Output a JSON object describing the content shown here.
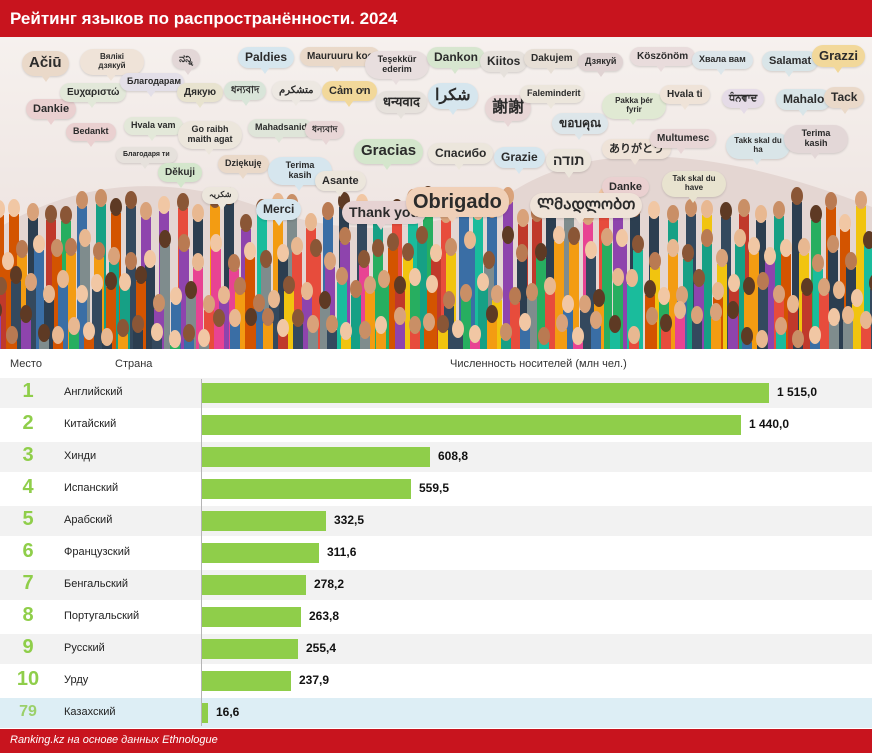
{
  "header": {
    "title": "Рейтинг языков по распространённости. 2024"
  },
  "colors": {
    "accent": "#c8141e",
    "bar": "#8fce4a",
    "highlight_row": "#ddeef5"
  },
  "banner": {
    "bubbles": [
      {
        "text": "Ačiū",
        "color": "#ead9c9"
      },
      {
        "text": "Вялікі дзякуй",
        "color": "#efe3d8"
      },
      {
        "text": "ನನ್ನಿ",
        "color": "#e3d7d7"
      },
      {
        "text": "Paldies",
        "color": "#d6e6ee"
      },
      {
        "text": "Mauruuru koe",
        "color": "#ead9c9"
      },
      {
        "text": "Teşekkür ederim",
        "color": "#e8dede"
      },
      {
        "text": "Dankon",
        "color": "#d7e6cf"
      },
      {
        "text": "Kiitos",
        "color": "#e6e1dc"
      },
      {
        "text": "Dakujem",
        "color": "#e7dfd6"
      },
      {
        "text": "Дзякуй",
        "color": "#e0d3d3"
      },
      {
        "text": "Köszönöm",
        "color": "#e9dcdc"
      },
      {
        "text": "Хвала вам",
        "color": "#dde6ea"
      },
      {
        "text": "Salamat",
        "color": "#d9e5e8"
      },
      {
        "text": "Grazzi",
        "color": "#f2d89a"
      },
      {
        "text": "Dankie",
        "color": "#ead0d0"
      },
      {
        "text": "Ευχαριστώ",
        "color": "#e2e8d9"
      },
      {
        "text": "Благодарам",
        "color": "#e3dfe8"
      },
      {
        "text": "Дякую",
        "color": "#e8e3cf"
      },
      {
        "text": "ধন্যবাদ",
        "color": "#d9e5d9"
      },
      {
        "text": "متشکرم",
        "color": "#ede8e2"
      },
      {
        "text": "Cảm ơn",
        "color": "#f2d89a"
      },
      {
        "text": "धन्यवाद",
        "color": "#e6e1dc"
      },
      {
        "text": "شكرا",
        "color": "#d6e6ee"
      },
      {
        "text": "謝謝",
        "color": "#e8d6d6"
      },
      {
        "text": "Faleminderit",
        "color": "#ece6dc"
      },
      {
        "text": "ขอบคุณ",
        "color": "#dde6ea"
      },
      {
        "text": "Pakka þér fyrir",
        "color": "#e0e9d3"
      },
      {
        "text": "Hvala ti",
        "color": "#efe3d8"
      },
      {
        "text": "ਧੰਨਵਾਦ",
        "color": "#e5dbe7"
      },
      {
        "text": "Mahalo",
        "color": "#d9e5e8"
      },
      {
        "text": "Tack",
        "color": "#ead9c9"
      },
      {
        "text": "Bedankt",
        "color": "#ead0d0"
      },
      {
        "text": "Hvala vam",
        "color": "#e3e8d9"
      },
      {
        "text": "Go raibh maith agat",
        "color": "#ece6dc"
      },
      {
        "text": "Mahadsanid",
        "color": "#dfe5d9"
      },
      {
        "text": "ধন্যবাদ",
        "color": "#e8d6d6"
      },
      {
        "text": "Gracias",
        "color": "#d4e6cc"
      },
      {
        "text": "Спасибо",
        "color": "#ece6dc"
      },
      {
        "text": "Grazie",
        "color": "#d6e6ee"
      },
      {
        "text": "תודה",
        "color": "#ece6dc"
      },
      {
        "text": "ありがとう",
        "color": "#efe3d8"
      },
      {
        "text": "Multumesc",
        "color": "#e8d6d6"
      },
      {
        "text": "Takk skal du ha",
        "color": "#d9e5e8"
      },
      {
        "text": "Terima kasih",
        "color": "#e3d7d7"
      },
      {
        "text": "Благодаря ти",
        "color": "#e6e1dc"
      },
      {
        "text": "Děkuji",
        "color": "#d4e6cc"
      },
      {
        "text": "Dziękuję",
        "color": "#ead9c9"
      },
      {
        "text": "Terima kasih",
        "color": "#d6e6ee"
      },
      {
        "text": "Asante",
        "color": "#ece6dc"
      },
      {
        "text": "Danke",
        "color": "#ead0d0"
      },
      {
        "text": "Tak skal du have",
        "color": "#e8e3cf"
      },
      {
        "text": "شکریہ",
        "color": "#ece6dc"
      },
      {
        "text": "Merci",
        "color": "#d6e6ee"
      },
      {
        "text": "Thank you",
        "color": "#e6d2d2"
      },
      {
        "text": "Obrigado",
        "color": "#f0d0b8"
      },
      {
        "text": "Ლმადლობთ",
        "color": "#efe3d8"
      }
    ]
  },
  "table": {
    "col_rank": "Место",
    "col_lang": "Страна",
    "col_value": "Численность носителей (млн чел.)"
  },
  "chart_data": {
    "type": "bar",
    "orientation": "horizontal",
    "title": "Рейтинг языков по распространённости. 2024",
    "xlabel": "Численность носителей (млн чел.)",
    "ylabel": "Страна",
    "xlim": [
      0,
      1515
    ],
    "categories": [
      "Английский",
      "Китайский",
      "Хинди",
      "Испанский",
      "Арабский",
      "Французский",
      "Бенгальский",
      "Португальский",
      "Русский",
      "Урду",
      "Казахский"
    ],
    "ranks": [
      "1",
      "2",
      "3",
      "4",
      "5",
      "6",
      "7",
      "8",
      "9",
      "10",
      "79"
    ],
    "values": [
      1515.0,
      1440.0,
      608.8,
      559.5,
      332.5,
      311.6,
      278.2,
      263.8,
      255.4,
      237.9,
      16.6
    ],
    "value_labels": [
      "1 515,0",
      "1 440,0",
      "608,8",
      "559,5",
      "332,5",
      "311,6",
      "278,2",
      "263,8",
      "255,4",
      "237,9",
      "16,6"
    ],
    "highlight_index": 10
  },
  "footer": {
    "source": "Ranking.kz на основе данных Ethnologue"
  }
}
